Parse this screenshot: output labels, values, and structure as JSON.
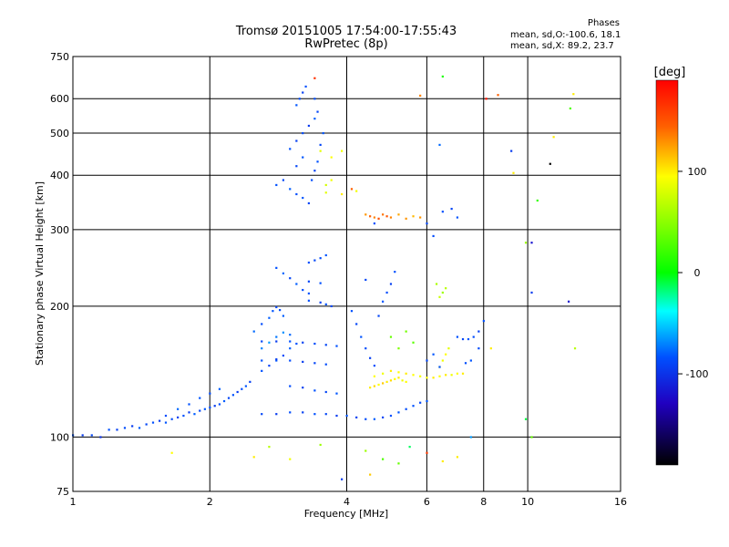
{
  "header": {
    "title": "Tromsø 20151005 17:54:00-17:55:43",
    "subtitle": "RwPretec (8p)",
    "phases_heading": "Phases",
    "phases_o": "mean, sd,O:-100.6, 18.1",
    "phases_x": "mean, sd,X: 89.2, 23.7"
  },
  "colorbar": {
    "unit": "[deg]",
    "ticks": [
      {
        "value": 100,
        "label": "100"
      },
      {
        "value": 0,
        "label": "0"
      },
      {
        "value": -100,
        "label": "-100"
      }
    ],
    "range": [
      -190,
      190
    ]
  },
  "chart_data": {
    "type": "scatter",
    "title": "Tromsø 20151005 17:54:00-17:55:43",
    "subtitle": "RwPretec (8p)",
    "xlabel": "Frequency [MHz]",
    "ylabel": "Stationary phase Virtual Height [km]",
    "x_scale": "log",
    "y_scale": "log",
    "xlim": [
      1,
      16
    ],
    "ylim": [
      75,
      750
    ],
    "x_ticks": [
      {
        "value": 1,
        "label": "1"
      },
      {
        "value": 2,
        "label": "2"
      },
      {
        "value": 4,
        "label": "4"
      },
      {
        "value": 6,
        "label": "6"
      },
      {
        "value": 8,
        "label": "8"
      },
      {
        "value": 10,
        "label": "10"
      },
      {
        "value": 16,
        "label": "16"
      }
    ],
    "y_ticks": [
      {
        "value": 75,
        "label": "75"
      },
      {
        "value": 100,
        "label": "100"
      },
      {
        "value": 200,
        "label": "200"
      },
      {
        "value": 300,
        "label": "300"
      },
      {
        "value": 400,
        "label": "400"
      },
      {
        "value": 500,
        "label": "500"
      },
      {
        "value": 600,
        "label": "600"
      },
      {
        "value": 750,
        "label": "750"
      }
    ],
    "grid": true,
    "color_scale": "phase [deg]",
    "points": [
      [
        1.0,
        101,
        -110
      ],
      [
        1.05,
        101,
        -120
      ],
      [
        1.1,
        101,
        -115
      ],
      [
        1.15,
        100,
        -125
      ],
      [
        1.2,
        104,
        -110
      ],
      [
        1.25,
        104,
        -118
      ],
      [
        1.3,
        105,
        -112
      ],
      [
        1.35,
        106,
        -120
      ],
      [
        1.4,
        105,
        -105
      ],
      [
        1.45,
        107,
        -115
      ],
      [
        1.5,
        108,
        -110
      ],
      [
        1.55,
        109,
        -120
      ],
      [
        1.6,
        108,
        -108
      ],
      [
        1.65,
        110,
        -112
      ],
      [
        1.7,
        111,
        -118
      ],
      [
        1.75,
        112,
        -110
      ],
      [
        1.8,
        114,
        -120
      ],
      [
        1.85,
        113,
        -105
      ],
      [
        1.9,
        115,
        -115
      ],
      [
        1.95,
        116,
        -108
      ],
      [
        2.0,
        117,
        -112
      ],
      [
        2.05,
        118,
        -120
      ],
      [
        2.1,
        119,
        -110
      ],
      [
        2.15,
        121,
        -105
      ],
      [
        2.2,
        123,
        -115
      ],
      [
        2.25,
        125,
        -110
      ],
      [
        2.3,
        127,
        -120
      ],
      [
        2.35,
        129,
        -112
      ],
      [
        2.4,
        131,
        -108
      ],
      [
        2.45,
        134,
        -118
      ],
      [
        1.6,
        112,
        -112
      ],
      [
        1.7,
        116,
        -100
      ],
      [
        1.8,
        119,
        -110
      ],
      [
        1.9,
        123,
        -108
      ],
      [
        2.0,
        126,
        -112
      ],
      [
        2.1,
        129,
        -104
      ],
      [
        2.6,
        142,
        -110
      ],
      [
        2.7,
        146,
        -116
      ],
      [
        2.8,
        150,
        -108
      ],
      [
        2.9,
        154,
        -112
      ],
      [
        3.0,
        160,
        -105
      ],
      [
        3.1,
        164,
        -110
      ],
      [
        2.5,
        175,
        -100
      ],
      [
        2.6,
        182,
        -112
      ],
      [
        2.7,
        188,
        -105
      ],
      [
        2.75,
        195,
        -108
      ],
      [
        2.8,
        199,
        -115
      ],
      [
        2.85,
        196,
        -110
      ],
      [
        2.9,
        190,
        -105
      ],
      [
        2.6,
        160,
        -90
      ],
      [
        2.7,
        165,
        -80
      ],
      [
        2.8,
        170,
        -95
      ],
      [
        2.9,
        174,
        -85
      ],
      [
        3.0,
        172,
        -100
      ],
      [
        2.6,
        113,
        -115
      ],
      [
        2.8,
        113,
        -120
      ],
      [
        3.0,
        114,
        -112
      ],
      [
        3.2,
        114,
        -118
      ],
      [
        3.4,
        113,
        -110
      ],
      [
        3.6,
        113,
        -115
      ],
      [
        3.8,
        112,
        -120
      ],
      [
        4.0,
        112,
        -110
      ],
      [
        4.2,
        111,
        -118
      ],
      [
        4.4,
        110,
        -112
      ],
      [
        4.6,
        110,
        -105
      ],
      [
        4.8,
        111,
        -115
      ],
      [
        5.0,
        112,
        -110
      ],
      [
        5.2,
        114,
        -108
      ],
      [
        5.4,
        116,
        -112
      ],
      [
        5.6,
        118,
        -110
      ],
      [
        5.8,
        120,
        -115
      ],
      [
        6.0,
        121,
        -108
      ],
      [
        2.6,
        150,
        -110
      ],
      [
        2.8,
        151,
        -118
      ],
      [
        3.0,
        150,
        -112
      ],
      [
        3.2,
        149,
        -120
      ],
      [
        3.4,
        148,
        -115
      ],
      [
        3.6,
        147,
        -112
      ],
      [
        2.6,
        166,
        -115
      ],
      [
        2.8,
        166,
        -120
      ],
      [
        3.0,
        166,
        -110
      ],
      [
        3.2,
        165,
        -118
      ],
      [
        3.4,
        164,
        -112
      ],
      [
        3.6,
        163,
        -115
      ],
      [
        3.8,
        162,
        -110
      ],
      [
        3.0,
        131,
        -112
      ],
      [
        3.2,
        130,
        -118
      ],
      [
        3.4,
        128,
        -110
      ],
      [
        3.6,
        127,
        -115
      ],
      [
        3.8,
        126,
        -108
      ],
      [
        2.8,
        245,
        -110
      ],
      [
        2.9,
        238,
        -100
      ],
      [
        3.0,
        232,
        -115
      ],
      [
        3.1,
        225,
        -105
      ],
      [
        3.2,
        218,
        -112
      ],
      [
        3.3,
        214,
        -108
      ],
      [
        2.8,
        380,
        -110
      ],
      [
        2.9,
        390,
        -115
      ],
      [
        3.0,
        372,
        -105
      ],
      [
        3.1,
        362,
        -112
      ],
      [
        3.2,
        355,
        -108
      ],
      [
        3.3,
        345,
        -115
      ],
      [
        3.0,
        460,
        -110
      ],
      [
        3.1,
        480,
        -118
      ],
      [
        3.2,
        500,
        -112
      ],
      [
        3.3,
        520,
        -120
      ],
      [
        3.4,
        540,
        -105
      ],
      [
        3.45,
        560,
        -115
      ],
      [
        3.1,
        580,
        -108
      ],
      [
        3.15,
        600,
        -112
      ],
      [
        3.2,
        620,
        -118
      ],
      [
        3.25,
        640,
        -110
      ],
      [
        3.1,
        420,
        -115
      ],
      [
        3.2,
        440,
        -108
      ],
      [
        3.35,
        390,
        -112
      ],
      [
        3.4,
        410,
        -118
      ],
      [
        3.45,
        430,
        -110
      ],
      [
        3.5,
        470,
        -115
      ],
      [
        3.55,
        500,
        -108
      ],
      [
        3.4,
        600,
        -112
      ],
      [
        3.3,
        252,
        -110
      ],
      [
        3.4,
        255,
        -115
      ],
      [
        3.5,
        258,
        -112
      ],
      [
        3.6,
        262,
        -108
      ],
      [
        3.3,
        228,
        -115
      ],
      [
        3.5,
        226,
        -110
      ],
      [
        3.3,
        206,
        -112
      ],
      [
        3.5,
        204,
        -118
      ],
      [
        3.6,
        202,
        -110
      ],
      [
        3.7,
        200,
        -115
      ],
      [
        3.6,
        380,
        80
      ],
      [
        3.7,
        390,
        90
      ],
      [
        3.6,
        365,
        85
      ],
      [
        3.7,
        440,
        95
      ],
      [
        3.9,
        455,
        90
      ],
      [
        3.5,
        455,
        85
      ],
      [
        4.1,
        195,
        -110
      ],
      [
        4.2,
        182,
        -115
      ],
      [
        4.3,
        170,
        -108
      ],
      [
        4.4,
        160,
        -112
      ],
      [
        4.5,
        152,
        -118
      ],
      [
        4.6,
        146,
        -110
      ],
      [
        4.7,
        190,
        -115
      ],
      [
        4.8,
        205,
        -108
      ],
      [
        4.9,
        215,
        -112
      ],
      [
        5.0,
        225,
        -118
      ],
      [
        5.1,
        240,
        -110
      ],
      [
        4.4,
        230,
        -115
      ],
      [
        4.4,
        325,
        125
      ],
      [
        4.5,
        322,
        140
      ],
      [
        4.6,
        320,
        130
      ],
      [
        4.7,
        318,
        150
      ],
      [
        4.8,
        325,
        135
      ],
      [
        4.9,
        322,
        145
      ],
      [
        5.0,
        320,
        130
      ],
      [
        5.2,
        325,
        120
      ],
      [
        5.4,
        318,
        125
      ],
      [
        5.6,
        322,
        115
      ],
      [
        5.8,
        320,
        125
      ],
      [
        4.6,
        310,
        -110
      ],
      [
        4.5,
        130,
        100
      ],
      [
        4.6,
        131,
        105
      ],
      [
        4.7,
        132,
        95
      ],
      [
        4.8,
        133,
        110
      ],
      [
        4.9,
        134,
        100
      ],
      [
        5.0,
        135,
        105
      ],
      [
        5.1,
        136,
        95
      ],
      [
        5.2,
        137,
        100
      ],
      [
        5.3,
        135,
        90
      ],
      [
        5.4,
        134,
        95
      ],
      [
        4.6,
        138,
        95
      ],
      [
        4.8,
        140,
        90
      ],
      [
        5.0,
        142,
        100
      ],
      [
        5.2,
        141,
        95
      ],
      [
        5.4,
        140,
        100
      ],
      [
        5.6,
        139,
        95
      ],
      [
        5.8,
        138,
        90
      ],
      [
        6.0,
        137,
        95
      ],
      [
        6.2,
        137,
        100
      ],
      [
        6.4,
        138,
        95
      ],
      [
        6.6,
        139,
        100
      ],
      [
        6.8,
        139,
        90
      ],
      [
        7.0,
        140,
        95
      ],
      [
        7.2,
        140,
        100
      ],
      [
        6.4,
        145,
        85
      ],
      [
        6.5,
        150,
        90
      ],
      [
        6.6,
        155,
        95
      ],
      [
        6.7,
        160,
        85
      ],
      [
        6.4,
        210,
        75
      ],
      [
        6.5,
        215,
        60
      ],
      [
        6.6,
        220,
        70
      ],
      [
        6.3,
        225,
        65
      ],
      [
        5.0,
        170,
        40
      ],
      [
        5.2,
        160,
        50
      ],
      [
        5.4,
        175,
        45
      ],
      [
        5.6,
        165,
        35
      ],
      [
        7.0,
        170,
        -110
      ],
      [
        7.2,
        168,
        -115
      ],
      [
        7.4,
        168,
        -108
      ],
      [
        7.6,
        170,
        -112
      ],
      [
        7.8,
        175,
        -118
      ],
      [
        8.0,
        185,
        -110
      ],
      [
        7.8,
        160,
        -112
      ],
      [
        7.5,
        150,
        -108
      ],
      [
        7.3,
        148,
        -112
      ],
      [
        6.4,
        145,
        -110
      ],
      [
        6.0,
        150,
        -115
      ],
      [
        6.2,
        155,
        -108
      ],
      [
        6.5,
        330,
        -110
      ],
      [
        6.8,
        335,
        -115
      ],
      [
        7.0,
        320,
        -108
      ],
      [
        6.0,
        310,
        -115
      ],
      [
        6.2,
        290,
        -112
      ],
      [
        4.4,
        93,
        60
      ],
      [
        4.8,
        89,
        30
      ],
      [
        5.2,
        87,
        40
      ],
      [
        6.0,
        92,
        160
      ],
      [
        5.5,
        95,
        -15
      ],
      [
        6.5,
        88,
        100
      ],
      [
        7.0,
        90,
        100
      ],
      [
        7.5,
        100,
        -80
      ],
      [
        3.5,
        96,
        60
      ],
      [
        3.9,
        80,
        -120
      ],
      [
        4.5,
        82,
        110
      ],
      [
        3.0,
        89,
        90
      ],
      [
        1.65,
        92,
        95
      ],
      [
        2.7,
        95,
        70
      ],
      [
        2.5,
        90,
        100
      ],
      [
        6.5,
        675,
        10
      ],
      [
        8.6,
        612,
        140
      ],
      [
        8.1,
        600,
        180
      ],
      [
        9.2,
        455,
        -120
      ],
      [
        9.3,
        405,
        100
      ],
      [
        9.9,
        280,
        60
      ],
      [
        10.2,
        280,
        -140
      ],
      [
        10.5,
        350,
        20
      ],
      [
        11.2,
        425,
        -190
      ],
      [
        11.4,
        490,
        100
      ],
      [
        12.6,
        615,
        100
      ],
      [
        12.4,
        570,
        30
      ],
      [
        12.3,
        205,
        -140
      ],
      [
        12.7,
        160,
        70
      ],
      [
        10.2,
        100,
        40
      ],
      [
        9.9,
        110,
        -10
      ],
      [
        10.2,
        215,
        -120
      ],
      [
        8.3,
        160,
        100
      ],
      [
        4.1,
        372,
        140
      ],
      [
        4.2,
        368,
        90
      ],
      [
        3.9,
        362,
        100
      ],
      [
        5.8,
        610,
        130
      ],
      [
        3.4,
        669,
        165
      ],
      [
        6.4,
        470,
        -100
      ]
    ]
  }
}
